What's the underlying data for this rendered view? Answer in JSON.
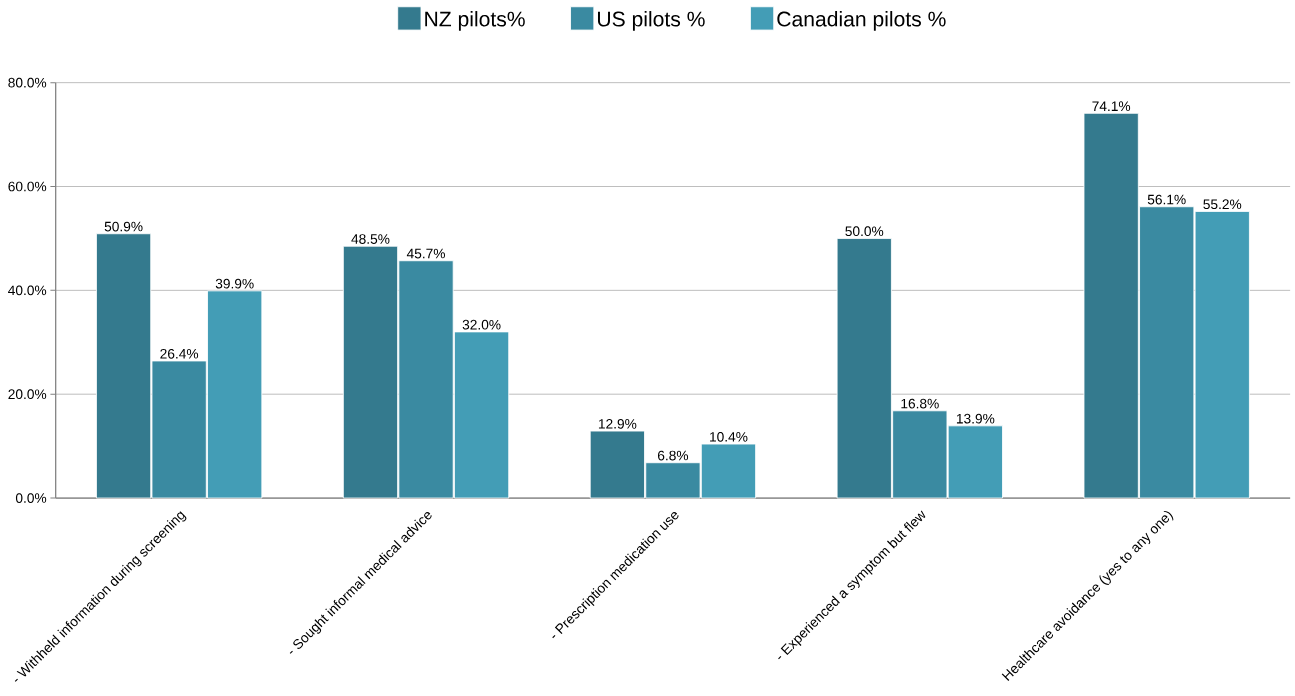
{
  "chart_data": {
    "type": "bar",
    "categories": [
      "- Withheld information during screening",
      "- Sought informal medical advice",
      "- Prescription medication use",
      "- Experienced a symptom but flew",
      "Healthcare avoidance (yes to any one)"
    ],
    "series": [
      {
        "name": "NZ pilots%",
        "color": "#347a8e",
        "values": [
          50.9,
          48.5,
          12.9,
          50.0,
          74.1
        ],
        "value_labels": [
          "50.9%",
          "48.5%",
          "12.9%",
          "50.0%",
          "74.1%"
        ]
      },
      {
        "name": "US pilots %",
        "color": "#3a8aa1",
        "values": [
          26.4,
          45.7,
          6.8,
          16.8,
          56.1
        ],
        "value_labels": [
          "26.4%",
          "45.7%",
          "6.8%",
          "16.8%",
          "56.1%"
        ]
      },
      {
        "name": "Canadian pilots %",
        "color": "#439db6",
        "values": [
          39.9,
          32.0,
          10.4,
          13.9,
          55.2
        ],
        "value_labels": [
          "39.9%",
          "32.0%",
          "10.4%",
          "13.9%",
          "55.2%"
        ]
      }
    ],
    "ylim": [
      0,
      80
    ],
    "yticks": [
      {
        "value": 0,
        "label": "0.0%"
      },
      {
        "value": 20,
        "label": "20.0%"
      },
      {
        "value": 40,
        "label": "40.0%"
      },
      {
        "value": 60,
        "label": "60.0%"
      },
      {
        "value": 80,
        "label": "80.0%"
      }
    ],
    "grid": "y",
    "legend": "top"
  }
}
